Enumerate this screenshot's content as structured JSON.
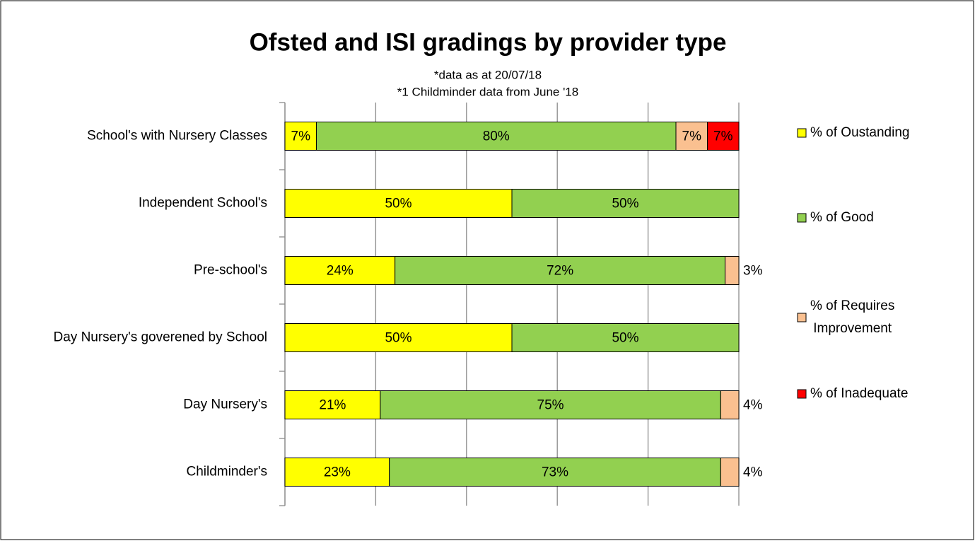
{
  "chart_data": {
    "type": "stacked_bar_horizontal",
    "stacking": "percent",
    "title": "Ofsted and ISI gradings by provider type",
    "subtitle": [
      "*data as at 20/07/18",
      "*1 Childminder data from June '18"
    ],
    "categories": [
      "School's with Nursery Classes",
      "Independent School's",
      "Pre-school's",
      "Day Nursery's goverened by School",
      "Day Nursery's",
      "Childminder's"
    ],
    "series": [
      {
        "name": "% of Oustanding",
        "color": "#ffff00",
        "values": [
          7,
          50,
          24,
          50,
          21,
          23
        ],
        "value_labels": [
          "7%",
          "50%",
          "24%",
          "50%",
          "21%",
          "23%"
        ]
      },
      {
        "name": "% of Good",
        "color": "#92d050",
        "values": [
          80,
          50,
          72,
          50,
          75,
          73
        ],
        "value_labels": [
          "80%",
          "50%",
          "72%",
          "50%",
          "75%",
          "73%"
        ]
      },
      {
        "name": "% of Requires Improvement",
        "color": "#fac090",
        "values": [
          7,
          null,
          3,
          null,
          4,
          4
        ],
        "value_labels": [
          "7%",
          null,
          "3%",
          null,
          "4%",
          "4%"
        ]
      },
      {
        "name": "% of Inadequate",
        "color": "#ff0000",
        "values": [
          7,
          null,
          null,
          null,
          null,
          null
        ],
        "value_labels": [
          "7%",
          null,
          null,
          null,
          null,
          null
        ]
      }
    ],
    "xlim": [
      0,
      100
    ],
    "xticks": [
      0,
      20,
      40,
      60,
      80,
      100
    ],
    "grid": true,
    "legend": "right"
  }
}
